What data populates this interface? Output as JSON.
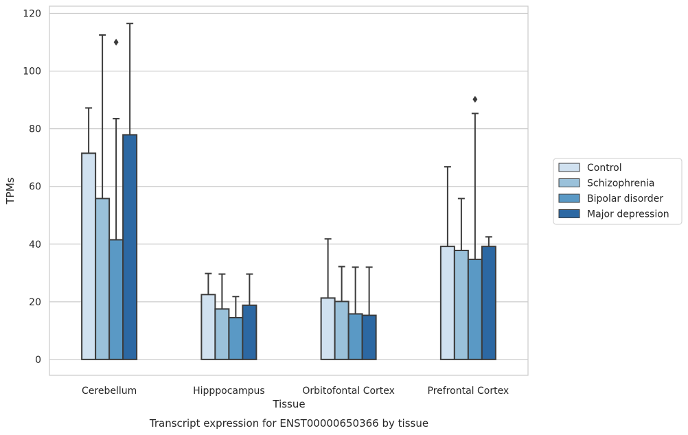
{
  "chart_data": {
    "type": "bar",
    "title": "Transcript expression for ENST00000650366 by tissue",
    "xlabel": "Tissue",
    "ylabel": "TPMs",
    "ylim": [
      -5.5,
      122.5
    ],
    "yticks": [
      0,
      20,
      40,
      60,
      80,
      100,
      120
    ],
    "grid": "horizontal",
    "legend_position": "right",
    "categories": [
      "Cerebellum",
      "Hipppocampus",
      "Orbitofontal Cortex",
      "Prefrontal Cortex"
    ],
    "series": [
      {
        "name": "Control",
        "color": "#d0e1f0",
        "values": [
          71.5,
          22.5,
          21.3,
          39.2
        ],
        "error_upper": [
          87.2,
          29.8,
          41.8,
          66.8
        ]
      },
      {
        "name": "Schizophrenia",
        "color": "#9ac1da",
        "values": [
          55.8,
          17.5,
          20.1,
          37.8
        ],
        "error_upper": [
          112.5,
          29.6,
          32.2,
          55.8
        ]
      },
      {
        "name": "Bipolar disorder",
        "color": "#5a99c5",
        "values": [
          41.5,
          14.5,
          15.8,
          34.7
        ],
        "error_upper": [
          83.5,
          21.8,
          32.0,
          85.3
        ]
      },
      {
        "name": "Major depression",
        "color": "#2c68a3",
        "values": [
          77.9,
          18.8,
          15.3,
          39.2
        ],
        "error_upper": [
          116.5,
          29.6,
          32.0,
          42.5
        ]
      }
    ],
    "outliers": [
      {
        "category": "Cerebellum",
        "series": "Bipolar disorder",
        "value": 110.0
      },
      {
        "category": "Prefrontal Cortex",
        "series": "Bipolar disorder",
        "value": 90.2
      }
    ]
  }
}
